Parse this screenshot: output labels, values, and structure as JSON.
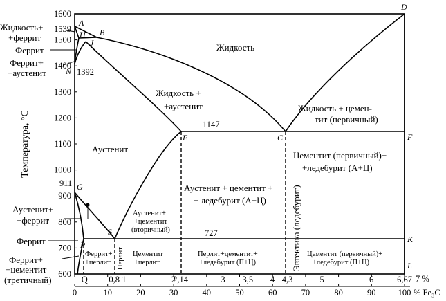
{
  "y_axis": {
    "title": "Температура, °C",
    "ticks": [
      600,
      700,
      800,
      900,
      1000,
      1100,
      1200,
      1300,
      1400,
      1500,
      1600
    ]
  },
  "x_axis_pct": {
    "ticks": [
      0,
      10,
      20,
      30,
      40,
      50,
      60,
      70,
      80,
      90,
      100
    ],
    "unit": "% Fe₃C"
  },
  "x_axis_carbon": {
    "ticks": [
      {
        "label": "Q",
        "c": 0.2
      },
      {
        "label": "0,8",
        "c": 0.8
      },
      {
        "label": "1",
        "c": 1
      },
      {
        "label": "2",
        "c": 2
      },
      {
        "label": "2,14",
        "c": 2.14
      },
      {
        "label": "3",
        "c": 3
      },
      {
        "label": "3,5",
        "c": 3.5
      },
      {
        "label": "4",
        "c": 4
      },
      {
        "label": "4,3",
        "c": 4.3
      },
      {
        "label": "5",
        "c": 5
      },
      {
        "label": "6",
        "c": 6
      },
      {
        "label": "6,67",
        "c": 6.67
      }
    ],
    "unit": "7 %"
  },
  "temperature_labels": {
    "t1539": "1539",
    "t1392": "1392",
    "t1147": "1147",
    "t911": "911",
    "t727": "727"
  },
  "points": {
    "A": "A",
    "B": "B",
    "H": "H",
    "J": "J",
    "N": "N",
    "D": "D",
    "E": "E",
    "C": "C",
    "F": "F",
    "G": "G",
    "S": "S",
    "P": "P",
    "K": "K",
    "L": "L"
  },
  "regions": {
    "liquid": "Жидкость",
    "liquid_austenite_1": "Жидкость +",
    "liquid_austenite_2": "+аустенит",
    "liquid_cementite_1": "Жидкость + цемен-",
    "liquid_cementite_2": "тит (первичный)",
    "austenite": "Аустенит",
    "cem_ledeburite_1": "Цементит (первичный)+",
    "cem_ledeburite_2": "+ледебурит (А+Ц)",
    "aus_cem_led_1": "Аустенит + цементит +",
    "aus_cem_led_2": "+ ледебурит (А+Ц)",
    "aus_cem_sec_1": "Аустенит+",
    "aus_cem_sec_2": "+цементит",
    "aus_cem_sec_3": "(вторичный)",
    "eutectic": "Эвтектика (ледебурит)",
    "ferrite_pearlite_1": "Феррит+",
    "ferrite_pearlite_2": "+перлит",
    "pearlite": "Перлит",
    "cem_pearlite_1": "Цементит",
    "cem_pearlite_2": "+перлит",
    "pear_cem_led_1": "Перлит+цементит+",
    "pear_cem_led_2": "+ледебурит (П+Ц)",
    "cemprim_led_1": "Цементит (первичный)+",
    "cemprim_led_2": "+ледебурит (П+Ц)"
  },
  "side_labels": {
    "liquid_ferrite_1": "Жидкость+",
    "liquid_ferrite_2": "+феррит",
    "ferrite_top": "Феррит",
    "ferrite_austenite_1": "Феррит+",
    "ferrite_austenite_2": "+аустенит",
    "austenite_ferrite_1": "Аустенит+",
    "austenite_ferrite_2": "+феррит",
    "ferrite_bottom": "Феррит",
    "ferrite_cementite_1": "Феррит+",
    "ferrite_cementite_2": "+цементит",
    "ferrite_cementite_3": "(третичный)"
  }
}
